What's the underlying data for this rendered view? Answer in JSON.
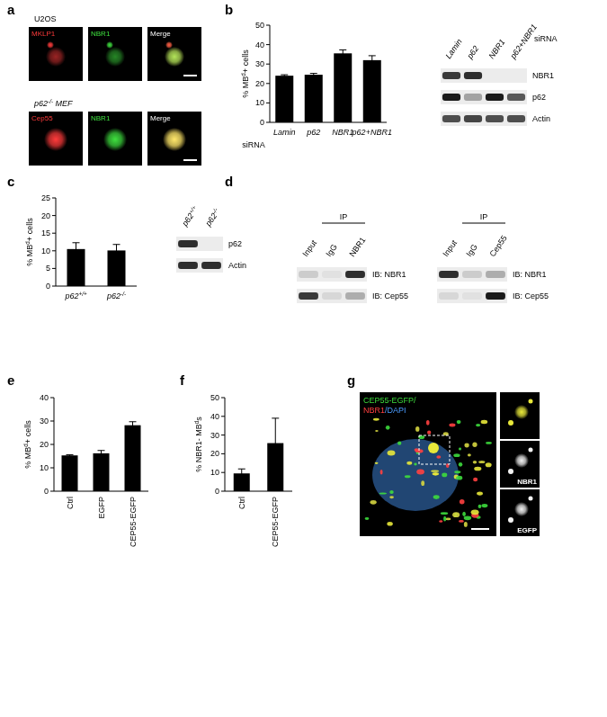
{
  "panel_labels": [
    "a",
    "b",
    "c",
    "d",
    "e",
    "f",
    "g"
  ],
  "microscopy": {
    "rows": [
      {
        "label": "U2OS",
        "channels": [
          {
            "name": "MKLP1",
            "color": "#ff3b3b"
          },
          {
            "name": "NBR1",
            "color": "#3fe03f"
          },
          {
            "name": "Merge",
            "color": "#ffffff"
          }
        ]
      },
      {
        "label": "p62-/- MEF",
        "channels": [
          {
            "name": "Cep55",
            "color": "#ff3b3b"
          },
          {
            "name": "NBR1",
            "color": "#3fe03f"
          },
          {
            "name": "Merge",
            "color": "#ffffff"
          }
        ]
      }
    ]
  },
  "chart_data": [
    {
      "type": "bar",
      "ylabel": "% MBd+ cells",
      "xlabel": "siRNA",
      "categories": [
        "Lamin",
        "p62",
        "NBR1",
        "p62+NBR1"
      ],
      "values": [
        24,
        24.5,
        35.5,
        32
      ],
      "errors": [
        0.5,
        0.7,
        1.8,
        2.3
      ],
      "color": "#000000",
      "ylim": [
        0,
        50
      ],
      "yticks": [
        0,
        10,
        20,
        30,
        40,
        50
      ]
    },
    {
      "type": "bar",
      "ylabel": "% MBd+ cells",
      "categories": [
        "p62+/+",
        "p62-/-"
      ],
      "values": [
        10.5,
        10.1
      ],
      "errors": [
        1.8,
        1.7
      ],
      "color": "#000000",
      "ylim": [
        0,
        25
      ],
      "yticks": [
        0,
        5,
        10,
        15,
        20,
        25
      ]
    },
    {
      "type": "bar",
      "ylabel": "% MBd+ cells",
      "categories": [
        "Ctrl",
        "EGFP",
        "CEP55-EGFP"
      ],
      "values": [
        15.3,
        16.2,
        28.2
      ],
      "errors": [
        0.3,
        1.2,
        1.5
      ],
      "color": "#000000",
      "ylim": [
        0,
        40
      ],
      "yticks": [
        0,
        10,
        20,
        30,
        40
      ]
    },
    {
      "type": "bar",
      "ylabel": "% NBR1- MBds",
      "categories": [
        "Ctrl",
        "CEP55-EGFP"
      ],
      "values": [
        9.5,
        25.7
      ],
      "errors": [
        2.4,
        13.3
      ],
      "color": "#000000",
      "ylim": [
        0,
        50
      ],
      "yticks": [
        0,
        10,
        20,
        30,
        40,
        50
      ]
    }
  ],
  "blots": [
    {
      "columns": [
        "Lamin",
        "p62",
        "NBR1",
        "p62+NBR1"
      ],
      "group": "siRNA",
      "rows": [
        {
          "label": "NBR1",
          "bands": [
            0.85,
            0.9,
            0,
            0
          ]
        },
        {
          "label": "p62",
          "bands": [
            1,
            0.35,
            1,
            0.7
          ]
        },
        {
          "label": "Actin",
          "bands": [
            0.75,
            0.8,
            0.75,
            0.75
          ]
        }
      ]
    },
    {
      "columns": [
        "p62+/+",
        "p62-/-"
      ],
      "rows": [
        {
          "label": "p62",
          "bands": [
            0.9,
            0
          ]
        },
        {
          "label": "Actin",
          "bands": [
            0.9,
            0.9
          ]
        }
      ]
    },
    {
      "columns": [
        "Input",
        "IgG",
        "NBR1"
      ],
      "group": "IP",
      "rows": [
        {
          "label": "IB: NBR1",
          "bands": [
            0.15,
            0.05,
            0.9
          ]
        },
        {
          "label": "IB: Cep55",
          "bands": [
            0.85,
            0.1,
            0.3
          ]
        }
      ]
    },
    {
      "columns": [
        "Input",
        "IgG",
        "Cep55"
      ],
      "group": "IP",
      "rows": [
        {
          "label": "IB: NBR1",
          "bands": [
            0.9,
            0.15,
            0.3
          ]
        },
        {
          "label": "IB: Cep55",
          "bands": [
            0.1,
            0.05,
            1
          ]
        }
      ]
    }
  ],
  "image_g": {
    "label": [
      {
        "text": "CEP55-EGFP/",
        "color": "#3ddc3d"
      },
      {
        "text": "NBR1",
        "color": "#ff4040"
      },
      {
        "text": "/DAPI",
        "color": "#4a9cff"
      }
    ],
    "insets": [
      "NBR1",
      "EGFP"
    ]
  }
}
